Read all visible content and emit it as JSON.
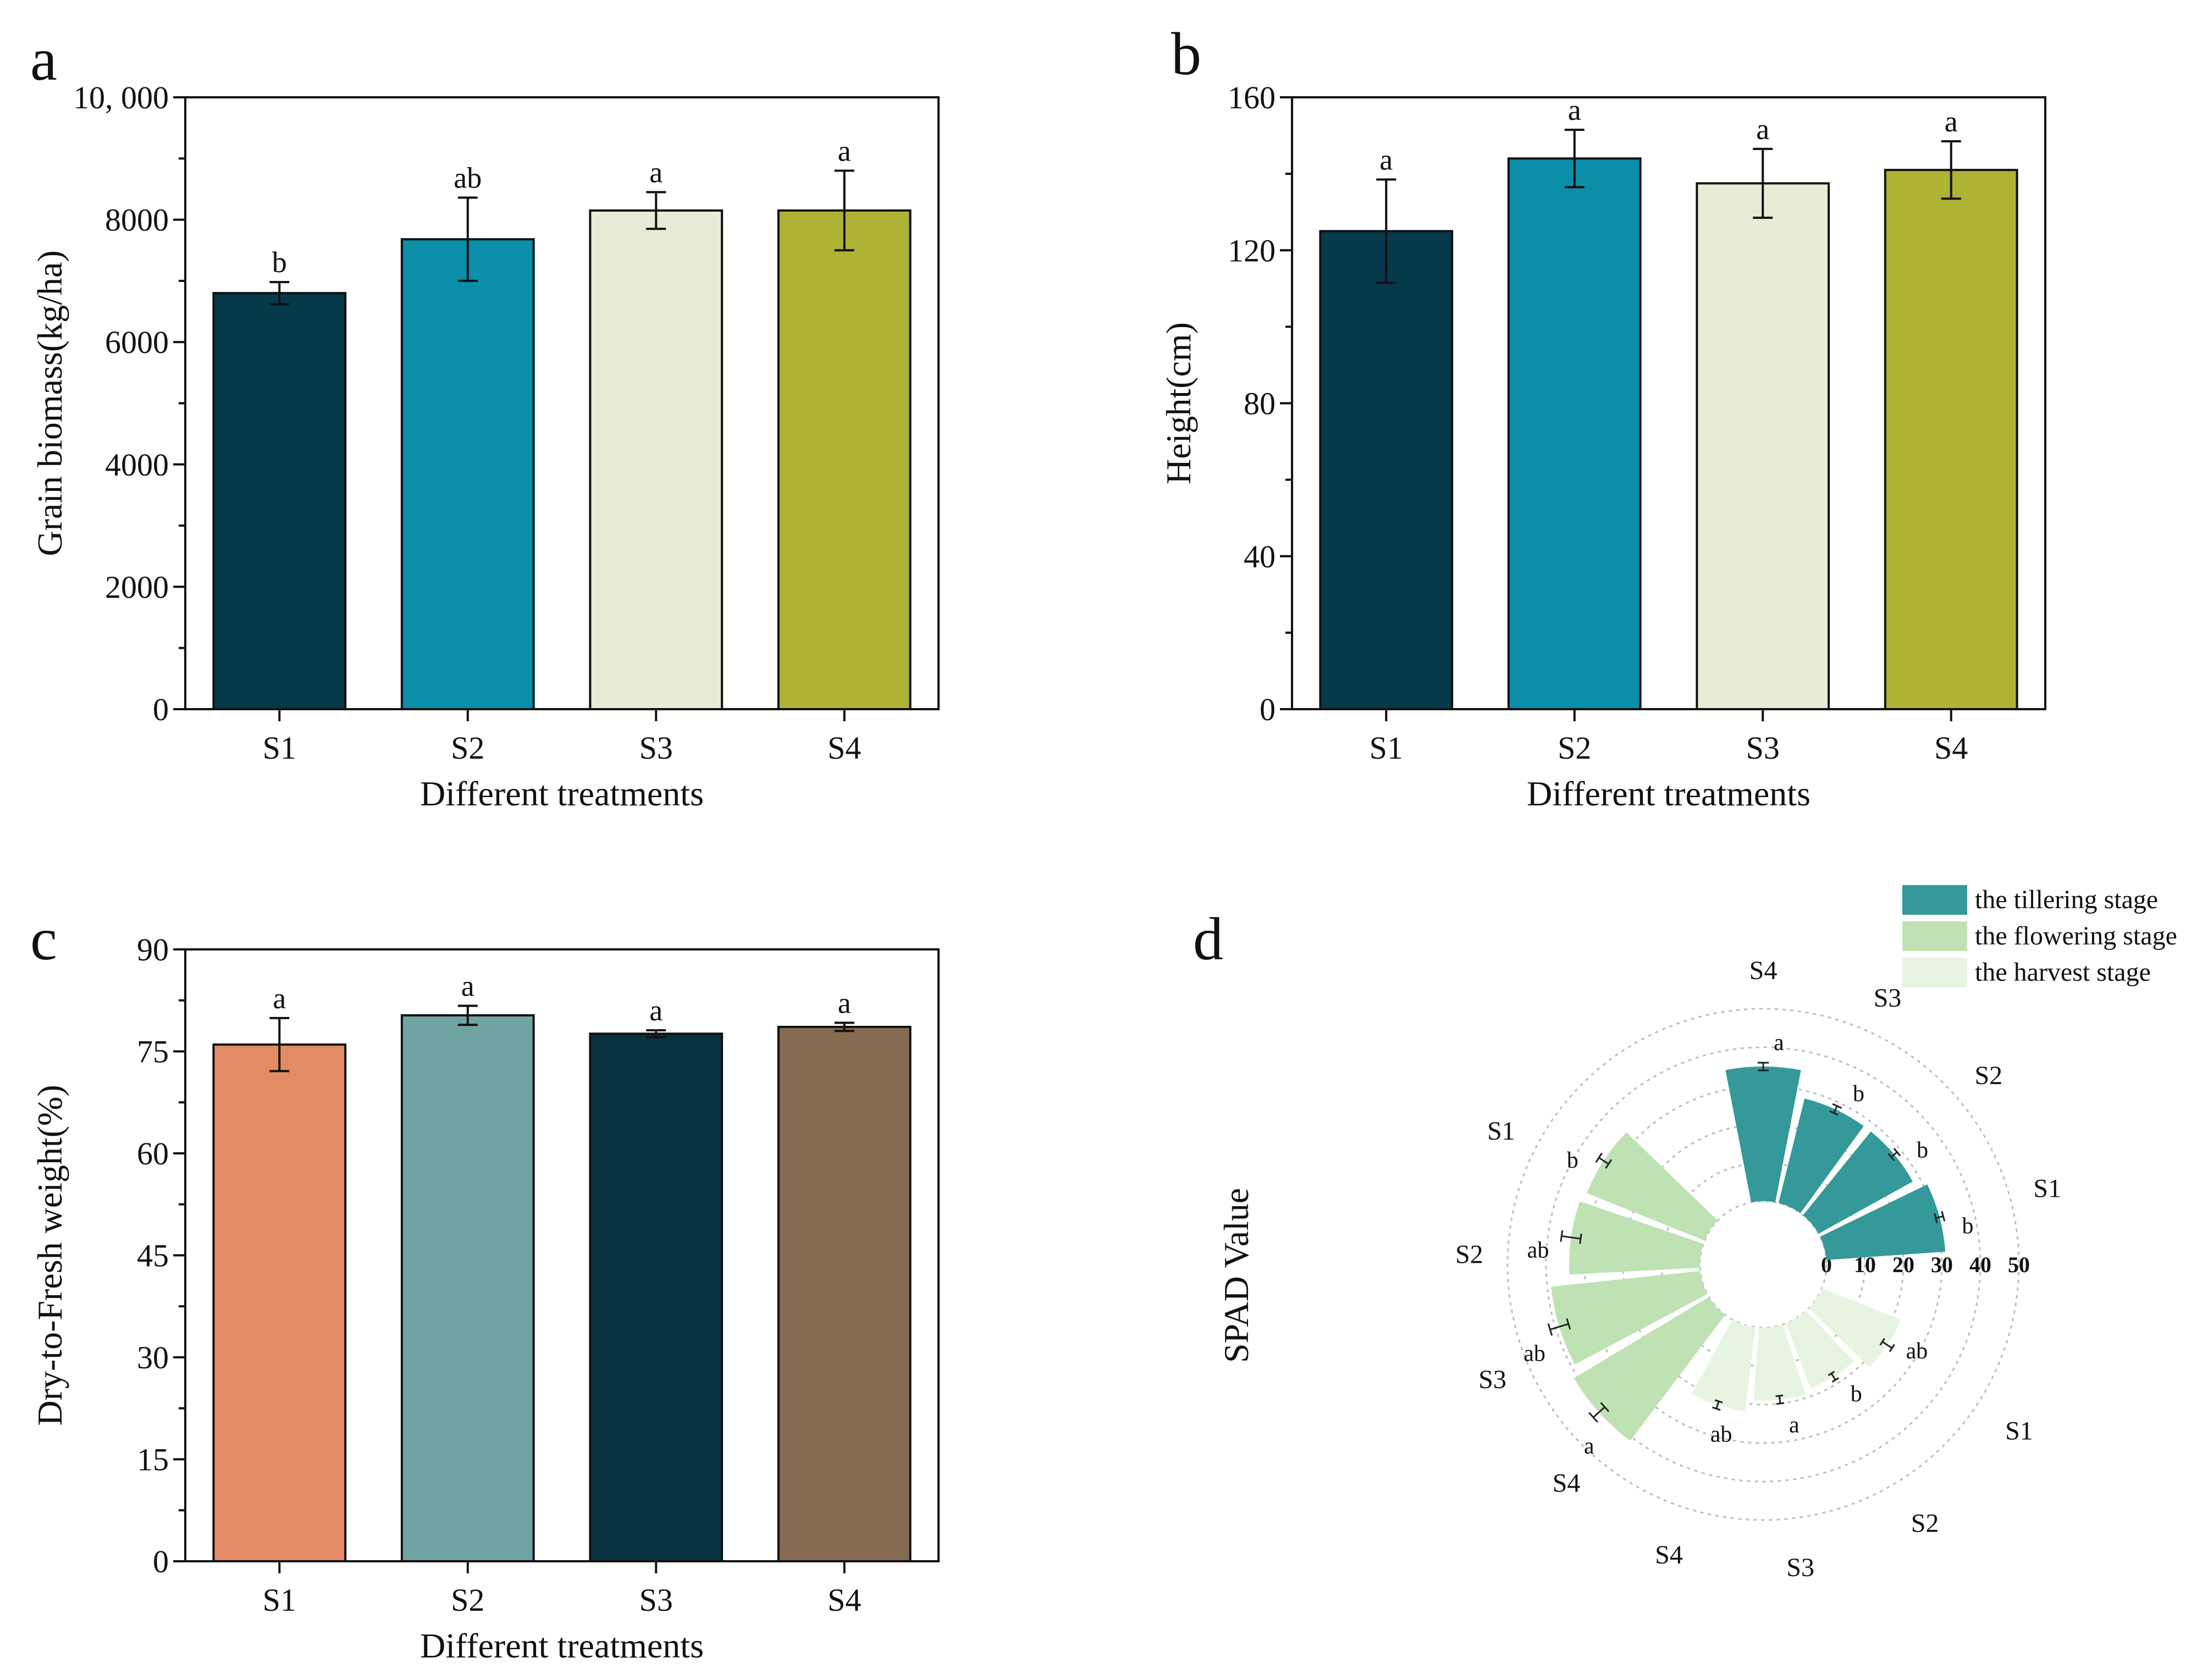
{
  "panels": [
    {
      "id": "a",
      "label": "a"
    },
    {
      "id": "b",
      "label": "b"
    },
    {
      "id": "c",
      "label": "c"
    },
    {
      "id": "d",
      "label": "d"
    }
  ],
  "chart_data": [
    {
      "id": "a",
      "type": "bar",
      "xlabel": "Different treatments",
      "ylabel": "Grain biomass(kg/ha)",
      "categories": [
        "S1",
        "S2",
        "S3",
        "S4"
      ],
      "values": [
        6800,
        7680,
        8150,
        8150
      ],
      "errors": [
        180,
        680,
        300,
        650
      ],
      "letters": [
        "b",
        "ab",
        "a",
        "a"
      ],
      "colors": [
        "#06394a",
        "#0b8fa9",
        "#e6ecd5",
        "#afb335"
      ],
      "ylim": [
        0,
        10000
      ],
      "yticks": [
        0,
        2000,
        4000,
        6000,
        8000,
        10000
      ],
      "ytick_labels": [
        "0",
        "2000",
        "4000",
        "6000",
        "8000",
        "10, 000"
      ]
    },
    {
      "id": "b",
      "type": "bar",
      "xlabel": "Different treatments",
      "ylabel": "Height(cm)",
      "categories": [
        "S1",
        "S2",
        "S3",
        "S4"
      ],
      "values": [
        125,
        144,
        137.5,
        141
      ],
      "errors": [
        13.5,
        7.5,
        9,
        7.5
      ],
      "letters": [
        "a",
        "a",
        "a",
        "a"
      ],
      "colors": [
        "#06394a",
        "#0b8fa9",
        "#e6ecd5",
        "#afb335"
      ],
      "ylim": [
        0,
        160
      ],
      "yticks": [
        0,
        40,
        80,
        120,
        160
      ],
      "ytick_labels": [
        "0",
        "40",
        "80",
        "120",
        "160"
      ]
    },
    {
      "id": "c",
      "type": "bar",
      "xlabel": "Different treatments",
      "ylabel": "Dry-to-Fresh weight(%)",
      "categories": [
        "S1",
        "S2",
        "S3",
        "S4"
      ],
      "values": [
        76,
        80.3,
        77.6,
        78.6
      ],
      "errors": [
        3.9,
        1.4,
        0.5,
        0.6
      ],
      "letters": [
        "a",
        "a",
        "a",
        "a"
      ],
      "colors": [
        "#e38b64",
        "#72a3a3",
        "#06323f",
        "#846b52"
      ],
      "ylim": [
        0,
        90
      ],
      "yticks": [
        0,
        15,
        30,
        45,
        60,
        75,
        90
      ],
      "ytick_labels": [
        "0",
        "15",
        "30",
        "45",
        "60",
        "75",
        "90"
      ]
    },
    {
      "id": "d",
      "type": "bar",
      "subtype": "radial",
      "ylabel": "SPAD Value",
      "rticks": [
        0,
        10,
        20,
        30,
        40,
        50
      ],
      "rtick_labels": [
        "0",
        "10",
        "20",
        "30",
        "40",
        "50"
      ],
      "rlim": [
        0,
        50
      ],
      "legend": [
        "the tillering stage",
        "the flowering stage",
        "the harvest stage"
      ],
      "legend_position": "top-right",
      "series": [
        {
          "name": "the tillering stage",
          "color": "#35999a",
          "categories": [
            "S1",
            "S2",
            "S3",
            "S4"
          ],
          "values": [
            31,
            28,
            28,
            35
          ],
          "errors": [
            1.0,
            1.0,
            1.0,
            1.0
          ],
          "letters": [
            "b",
            "b",
            "b",
            "a"
          ]
        },
        {
          "name": "the flowering stage",
          "color": "#bfe2b4",
          "categories": [
            "S1",
            "S2",
            "S3",
            "S4"
          ],
          "values": [
            33,
            34,
            39,
            41
          ],
          "errors": [
            1.5,
            2.5,
            2.5,
            2.0
          ],
          "letters": [
            "b",
            "ab",
            "ab",
            "a"
          ]
        },
        {
          "name": "the harvest stage",
          "color": "#e6f4e1",
          "categories": [
            "S1",
            "S2",
            "S3",
            "S4"
          ],
          "values": [
            22,
            18,
            19,
            22
          ],
          "errors": [
            1.5,
            1.0,
            1.0,
            1.0
          ],
          "letters": [
            "ab",
            "b",
            "a",
            "ab"
          ]
        }
      ]
    }
  ]
}
